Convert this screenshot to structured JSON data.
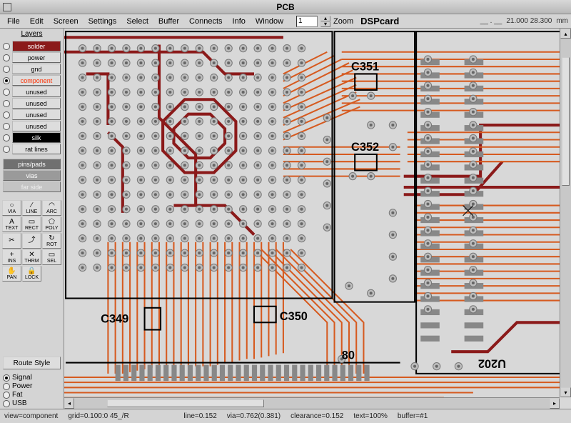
{
  "title": "PCB",
  "menu": [
    "File",
    "Edit",
    "Screen",
    "Settings",
    "Select",
    "Buffer",
    "Connects",
    "Info",
    "Window"
  ],
  "zoom": {
    "value": "1",
    "label": "Zoom"
  },
  "board_name": "DSPcard",
  "coord_dash": "__ . __",
  "coord": "21.000 28.300",
  "units": "mm",
  "layers_title": "Layers",
  "layers": [
    {
      "label": "solder",
      "bg": "#8b1a1a",
      "fg": "#ffffff",
      "active": false
    },
    {
      "label": "power",
      "bg": "#dddddd",
      "fg": "#000000",
      "active": false
    },
    {
      "label": "gnd",
      "bg": "#dddddd",
      "fg": "#000000",
      "active": false
    },
    {
      "label": "component",
      "bg": "#dddddd",
      "fg": "#ff3000",
      "active": true
    },
    {
      "label": "unused",
      "bg": "#dddddd",
      "fg": "#000000",
      "active": false
    },
    {
      "label": "unused",
      "bg": "#dddddd",
      "fg": "#000000",
      "active": false
    },
    {
      "label": "unused",
      "bg": "#dddddd",
      "fg": "#000000",
      "active": false
    },
    {
      "label": "unused",
      "bg": "#dddddd",
      "fg": "#000000",
      "active": false
    },
    {
      "label": "silk",
      "bg": "#000000",
      "fg": "#ffffff",
      "active": false
    },
    {
      "label": "rat lines",
      "bg": "#dddddd",
      "fg": "#000000",
      "active": false
    }
  ],
  "layer_extra": [
    {
      "label": "pins/pads",
      "bg": "#707070",
      "fg": "#ffffff"
    },
    {
      "label": "vias",
      "bg": "#9a9a9a",
      "fg": "#ffffff"
    },
    {
      "label": "far side",
      "bg": "#c4c4c4",
      "fg": "#f0f0f0"
    }
  ],
  "tools": [
    {
      "t": "VIA",
      "i": "○"
    },
    {
      "t": "LINE",
      "i": "∕"
    },
    {
      "t": "ARC",
      "i": "◠"
    },
    {
      "t": "TEXT",
      "i": "A"
    },
    {
      "t": "RECT",
      "i": "▭"
    },
    {
      "t": "POLY",
      "i": "⬠"
    },
    {
      "t": "",
      "i": "✂"
    },
    {
      "t": "",
      "i": "⤴"
    },
    {
      "t": "ROT",
      "i": "↻"
    },
    {
      "t": "INS",
      "i": "+"
    },
    {
      "t": "THRM",
      "i": "✕"
    },
    {
      "t": "SEL",
      "i": "▭"
    },
    {
      "t": "PAN",
      "i": "✋"
    },
    {
      "t": "LOCK",
      "i": "🔒"
    }
  ],
  "route_style_label": "Route Style",
  "route_styles": [
    {
      "label": "Signal",
      "active": true
    },
    {
      "label": "Power",
      "active": false
    },
    {
      "label": "Fat",
      "active": false
    },
    {
      "label": "USB",
      "active": false
    }
  ],
  "status": {
    "view": "view=component",
    "grid": "grid=0.100:0 45_/R",
    "line": "line=0.152",
    "via": "via=0.762(0.381)",
    "clearance": "clearance=0.152",
    "text": "text=100%",
    "buffer": "buffer=#1"
  },
  "silk_labels": {
    "c349": "C349",
    "c350": "C350",
    "c351": "C351",
    "c352": "C352",
    "eighty": "80",
    "u202": "U202"
  },
  "colors": {
    "trace_component": "#d65a1f",
    "trace_solder": "#8b1a1a",
    "via_outer": "#bdbdbd",
    "via_inner": "#666666",
    "pad": "#888888",
    "bg": "#d8d8d8"
  }
}
